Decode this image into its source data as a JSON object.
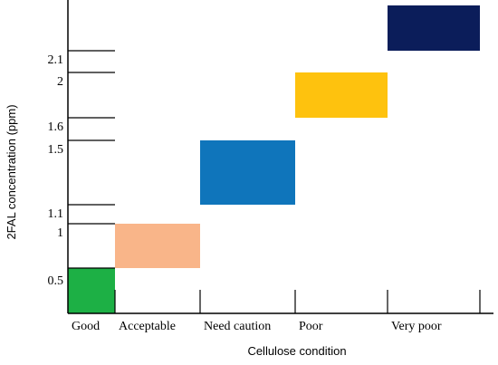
{
  "chart_data": {
    "type": "bar",
    "xlabel": "Cellulose condition",
    "ylabel": "2FAL concentration (ppm)",
    "categories": [
      "Good",
      "Acceptable",
      "Need caution",
      "Poor",
      "Very poor"
    ],
    "y_ticks": [
      {
        "label": "0.5",
        "value": 0.5
      },
      {
        "label": "1",
        "value": 1.0
      },
      {
        "label": "1.1",
        "value": 1.1
      },
      {
        "label": "1.5",
        "value": 1.5
      },
      {
        "label": "1.6",
        "value": 1.6
      },
      {
        "label": "2",
        "value": 2.0
      },
      {
        "label": "2.1",
        "value": 2.1
      }
    ],
    "ranges": [
      {
        "category": "Good",
        "low": 0.5,
        "high": 0.6,
        "color": "#1DB045"
      },
      {
        "category": "Acceptable",
        "low": 0.6,
        "high": 1.0,
        "color": "#F9B589"
      },
      {
        "category": "Need caution",
        "low": 1.1,
        "high": 1.5,
        "color": "#0F75BB"
      },
      {
        "category": "Poor",
        "low": 1.6,
        "high": 2.0,
        "color": "#FEC20E"
      },
      {
        "category": "Very poor",
        "low": 2.1,
        "high": 2.3,
        "color": "#0B1D5A"
      }
    ],
    "ylim": [
      0.5,
      2.3
    ],
    "grid": false,
    "legend": "none"
  }
}
